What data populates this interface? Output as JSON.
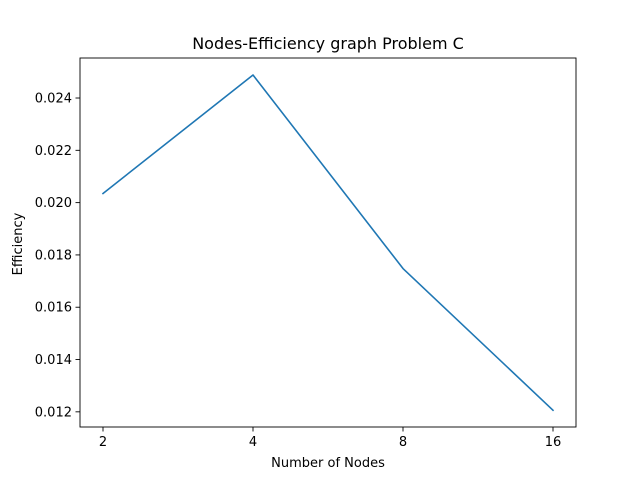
{
  "chart_data": {
    "type": "line",
    "title": "Nodes-Efficiency graph Problem C",
    "xlabel": "Number of Nodes",
    "ylabel": "Efficiency",
    "categories": [
      "2",
      "4",
      "8",
      "16"
    ],
    "series": [
      {
        "values": [
          0.02035,
          0.02488,
          0.01748,
          0.01206
        ],
        "color": "#1f77b4"
      }
    ],
    "yticks": [
      0.012,
      0.014,
      0.016,
      0.018,
      0.02,
      0.022,
      0.024
    ],
    "ytick_labels": [
      "0.012",
      "0.014",
      "0.016",
      "0.018",
      "0.020",
      "0.022",
      "0.024"
    ],
    "ylim": [
      0.01142,
      0.02553
    ],
    "grid": false,
    "legend": "none"
  }
}
